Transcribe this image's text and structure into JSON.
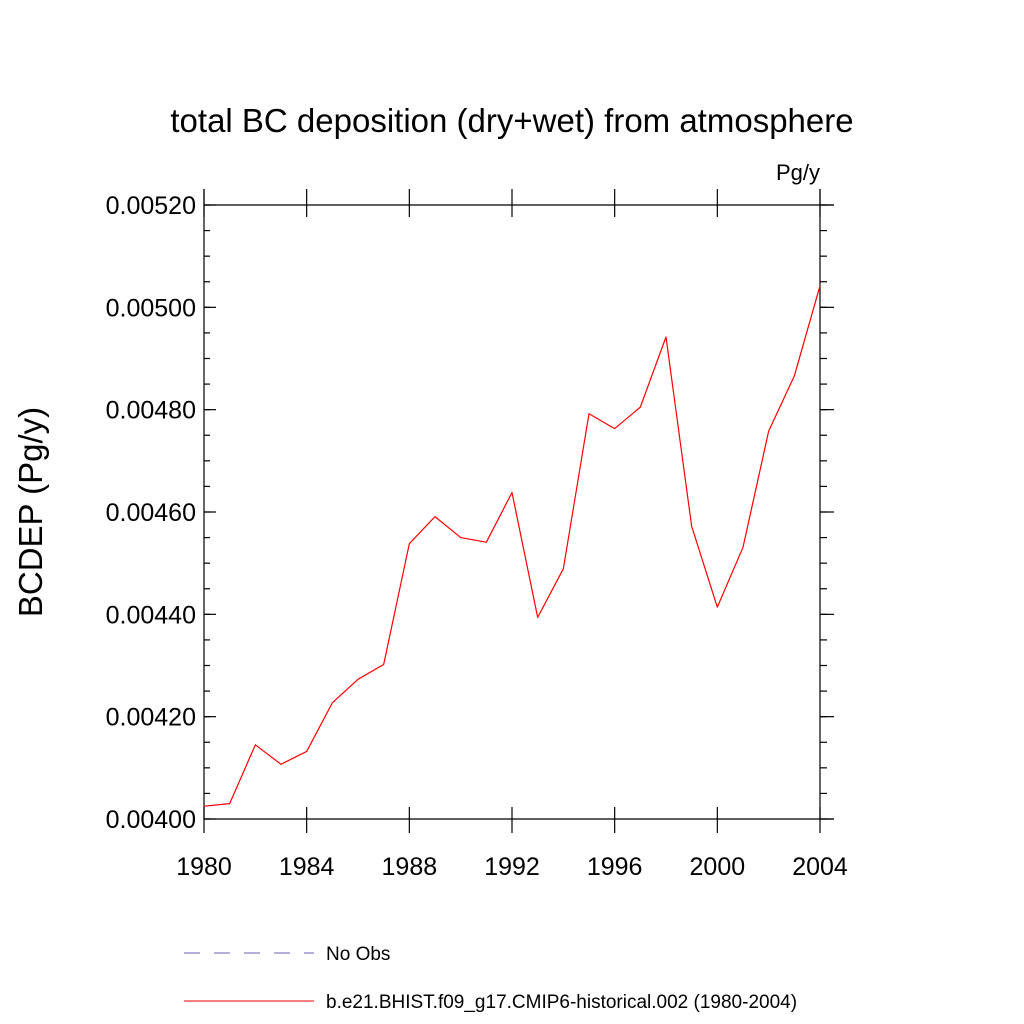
{
  "chart_data": {
    "type": "line",
    "title": "total BC deposition (dry+wet) from atmosphere",
    "units_label": "Pg/y",
    "ylabel": "BCDEP  (Pg/y)",
    "xlabel": "",
    "xlim": [
      1980,
      2004
    ],
    "ylim": [
      0.004,
      0.0052
    ],
    "x_ticks": [
      "1980",
      "1984",
      "1988",
      "1992",
      "1996",
      "2000",
      "2004"
    ],
    "y_ticks": [
      "0.00400",
      "0.00420",
      "0.00440",
      "0.00460",
      "0.00480",
      "0.00500",
      "0.00520"
    ],
    "x": [
      1980,
      1981,
      1982,
      1983,
      1984,
      1985,
      1986,
      1987,
      1988,
      1989,
      1990,
      1991,
      1992,
      1993,
      1994,
      1995,
      1996,
      1997,
      1998,
      1999,
      2000,
      2001,
      2002,
      2003,
      2004
    ],
    "series": [
      {
        "name": "b.e21.BHIST.f09_g17.CMIP6-historical.002 (1980-2004)",
        "color": "#ff0000",
        "style": "solid",
        "values": [
          0.004025,
          0.00403,
          0.004145,
          0.004107,
          0.004132,
          0.004227,
          0.004273,
          0.004302,
          0.004538,
          0.004591,
          0.00455,
          0.004541,
          0.004638,
          0.004394,
          0.004489,
          0.004792,
          0.004763,
          0.004805,
          0.004942,
          0.004572,
          0.004414,
          0.004531,
          0.004758,
          0.004866,
          0.005042
        ]
      }
    ],
    "legend": {
      "placement": "bottom",
      "entries": [
        {
          "label": "No Obs",
          "color": "#6b5fb0",
          "style": "dashed"
        },
        {
          "label": "b.e21.BHIST.f09_g17.CMIP6-historical.002 (1980-2004)",
          "color": "#ff0000",
          "style": "solid"
        }
      ]
    },
    "grid": false
  }
}
